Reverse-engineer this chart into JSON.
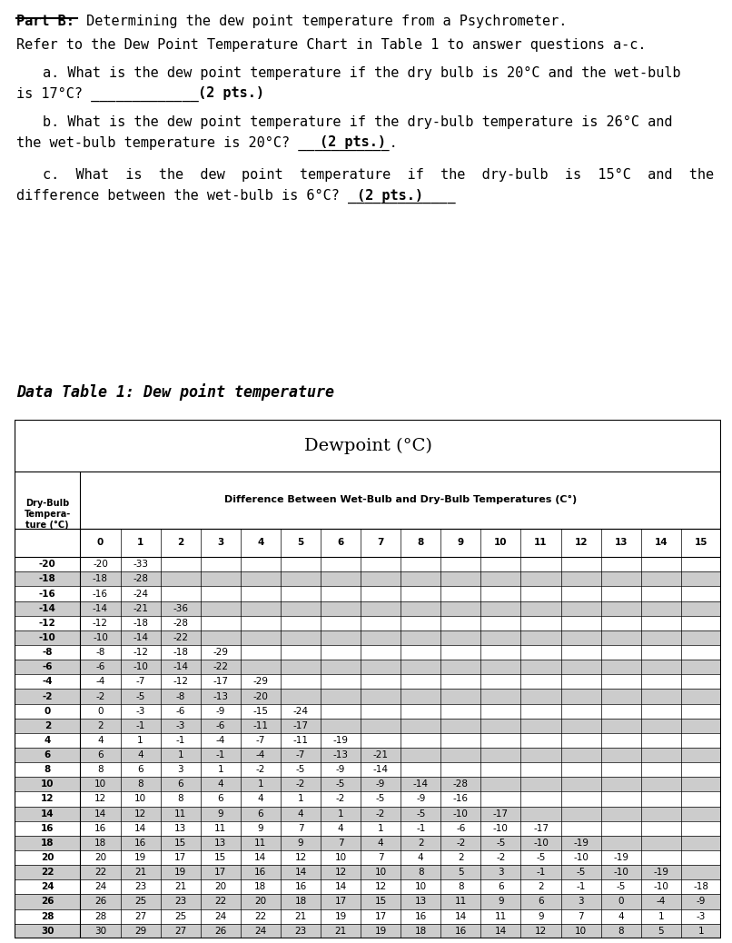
{
  "bg_color": "#ffffff",
  "shaded_rows": [
    1,
    3,
    5,
    7,
    9,
    11,
    13,
    15,
    17,
    19,
    21,
    23,
    25
  ],
  "shade_color": "#cccccc",
  "diff_cols": [
    0,
    1,
    2,
    3,
    4,
    5,
    6,
    7,
    8,
    9,
    10,
    11,
    12,
    13,
    14,
    15
  ],
  "dry_bulb_temps": [
    -20,
    -18,
    -16,
    -14,
    -12,
    -10,
    -8,
    -6,
    -4,
    -2,
    0,
    2,
    4,
    6,
    8,
    10,
    12,
    14,
    16,
    18,
    20,
    22,
    24,
    26,
    28,
    30
  ],
  "table_data": [
    [
      -20,
      -33,
      null,
      null,
      null,
      null,
      null,
      null,
      null,
      null,
      null,
      null,
      null,
      null,
      null,
      null
    ],
    [
      -18,
      -28,
      null,
      null,
      null,
      null,
      null,
      null,
      null,
      null,
      null,
      null,
      null,
      null,
      null,
      null
    ],
    [
      -16,
      -24,
      null,
      null,
      null,
      null,
      null,
      null,
      null,
      null,
      null,
      null,
      null,
      null,
      null,
      null
    ],
    [
      -14,
      -21,
      -36,
      null,
      null,
      null,
      null,
      null,
      null,
      null,
      null,
      null,
      null,
      null,
      null,
      null
    ],
    [
      -12,
      -18,
      -28,
      null,
      null,
      null,
      null,
      null,
      null,
      null,
      null,
      null,
      null,
      null,
      null,
      null
    ],
    [
      -10,
      -14,
      -22,
      null,
      null,
      null,
      null,
      null,
      null,
      null,
      null,
      null,
      null,
      null,
      null,
      null
    ],
    [
      -8,
      -12,
      -18,
      -29,
      null,
      null,
      null,
      null,
      null,
      null,
      null,
      null,
      null,
      null,
      null,
      null
    ],
    [
      -6,
      -10,
      -14,
      -22,
      null,
      null,
      null,
      null,
      null,
      null,
      null,
      null,
      null,
      null,
      null,
      null
    ],
    [
      -4,
      -7,
      -12,
      -17,
      -29,
      null,
      null,
      null,
      null,
      null,
      null,
      null,
      null,
      null,
      null,
      null
    ],
    [
      -2,
      -5,
      -8,
      -13,
      -20,
      null,
      null,
      null,
      null,
      null,
      null,
      null,
      null,
      null,
      null,
      null
    ],
    [
      0,
      -3,
      -6,
      -9,
      -15,
      -24,
      null,
      null,
      null,
      null,
      null,
      null,
      null,
      null,
      null,
      null
    ],
    [
      2,
      -1,
      -3,
      -6,
      -11,
      -17,
      null,
      null,
      null,
      null,
      null,
      null,
      null,
      null,
      null,
      null
    ],
    [
      4,
      1,
      -1,
      -4,
      -7,
      -11,
      -19,
      null,
      null,
      null,
      null,
      null,
      null,
      null,
      null,
      null
    ],
    [
      6,
      4,
      1,
      -1,
      -4,
      -7,
      -13,
      -21,
      null,
      null,
      null,
      null,
      null,
      null,
      null,
      null
    ],
    [
      8,
      6,
      3,
      1,
      -2,
      -5,
      -9,
      -14,
      null,
      null,
      null,
      null,
      null,
      null,
      null,
      null
    ],
    [
      10,
      8,
      6,
      4,
      1,
      -2,
      -5,
      -9,
      -14,
      -28,
      null,
      null,
      null,
      null,
      null,
      null
    ],
    [
      12,
      10,
      8,
      6,
      4,
      1,
      -2,
      -5,
      -9,
      -16,
      null,
      null,
      null,
      null,
      null,
      null
    ],
    [
      14,
      12,
      11,
      9,
      6,
      4,
      1,
      -2,
      -5,
      -10,
      -17,
      null,
      null,
      null,
      null,
      null
    ],
    [
      16,
      14,
      13,
      11,
      9,
      7,
      4,
      1,
      -1,
      -6,
      -10,
      -17,
      null,
      null,
      null,
      null
    ],
    [
      18,
      16,
      15,
      13,
      11,
      9,
      7,
      4,
      2,
      -2,
      -5,
      -10,
      -19,
      null,
      null,
      null
    ],
    [
      20,
      19,
      17,
      15,
      14,
      12,
      10,
      7,
      4,
      2,
      -2,
      -5,
      -10,
      -19,
      null,
      null
    ],
    [
      22,
      21,
      19,
      17,
      16,
      14,
      12,
      10,
      8,
      5,
      3,
      -1,
      -5,
      -10,
      -19,
      null
    ],
    [
      24,
      23,
      21,
      20,
      18,
      16,
      14,
      12,
      10,
      8,
      6,
      2,
      -1,
      -5,
      -10,
      -18
    ],
    [
      26,
      25,
      23,
      22,
      20,
      18,
      17,
      15,
      13,
      11,
      9,
      6,
      3,
      0,
      -4,
      -9
    ],
    [
      28,
      27,
      25,
      24,
      22,
      21,
      19,
      17,
      16,
      14,
      11,
      9,
      7,
      4,
      1,
      -3
    ],
    [
      30,
      29,
      27,
      26,
      24,
      23,
      21,
      19,
      18,
      16,
      14,
      12,
      10,
      8,
      5,
      1
    ]
  ]
}
